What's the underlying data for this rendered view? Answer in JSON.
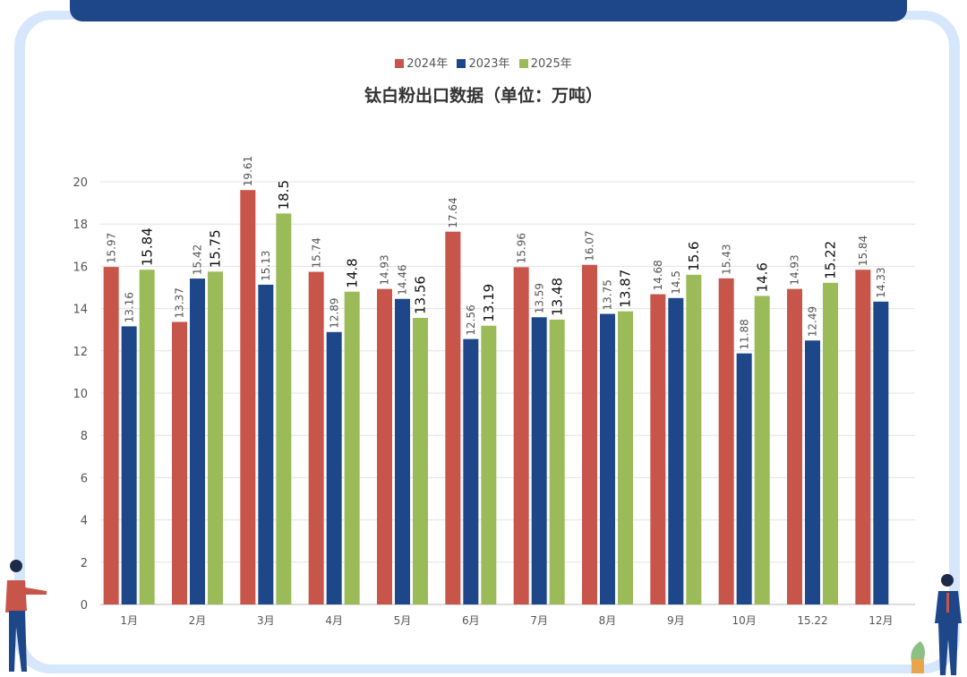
{
  "chart_data": {
    "type": "bar",
    "title": "钛白粉出口数据（单位：万吨）",
    "categories": [
      "1月",
      "2月",
      "3月",
      "4月",
      "5月",
      "6月",
      "7月",
      "8月",
      "9月",
      "10月",
      "15.22",
      "12月"
    ],
    "series": [
      {
        "name": "2024年",
        "color": "#c8554a",
        "values": [
          15.97,
          13.37,
          19.61,
          15.74,
          14.93,
          17.64,
          15.96,
          16.07,
          14.68,
          15.43,
          14.93,
          15.84
        ]
      },
      {
        "name": "2023年",
        "color": "#1d4788",
        "values": [
          13.16,
          15.42,
          15.13,
          12.89,
          14.46,
          12.56,
          13.59,
          13.75,
          14.5,
          11.88,
          12.49,
          14.33
        ]
      },
      {
        "name": "2025年",
        "color": "#9bbb59",
        "values": [
          15.84,
          15.75,
          18.5,
          14.8,
          13.56,
          13.19,
          13.48,
          13.87,
          15.6,
          14.6,
          15.22,
          null
        ]
      }
    ],
    "yticks": [
      0,
      2,
      4,
      6,
      8,
      10,
      12,
      14,
      16,
      18,
      20
    ],
    "ylim": [
      0,
      20
    ],
    "grid": true,
    "legend": "top-center"
  }
}
